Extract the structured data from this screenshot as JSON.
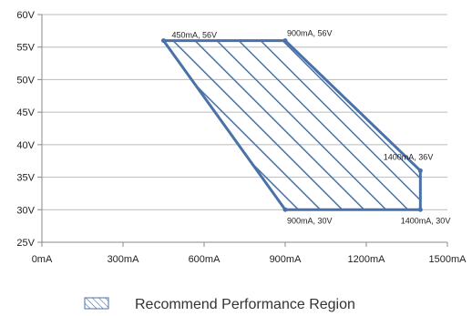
{
  "chart_data": {
    "type": "area",
    "x_ticks": [
      "0mA",
      "300mA",
      "600mA",
      "900mA",
      "1200mA",
      "1500mA"
    ],
    "x_tick_values": [
      0,
      300,
      600,
      900,
      1200,
      1500
    ],
    "y_ticks": [
      "25V",
      "30V",
      "35V",
      "40V",
      "45V",
      "50V",
      "55V",
      "60V"
    ],
    "y_tick_values": [
      25,
      30,
      35,
      40,
      45,
      50,
      55,
      60
    ],
    "xlim": [
      0,
      1500
    ],
    "ylim": [
      25,
      60
    ],
    "grid": "horizontal",
    "series": [
      {
        "name": "Recommend Performance Region",
        "points": [
          {
            "x": 450,
            "y": 56
          },
          {
            "x": 900,
            "y": 56
          },
          {
            "x": 1400,
            "y": 36
          },
          {
            "x": 1400,
            "y": 30
          },
          {
            "x": 900,
            "y": 30
          }
        ]
      }
    ],
    "annotations": [
      {
        "text": "450mA, 56V",
        "x": 450,
        "y": 56
      },
      {
        "text": "900mA, 56V",
        "x": 900,
        "y": 56
      },
      {
        "text": "1400mA, 36V",
        "x": 1400,
        "y": 36
      },
      {
        "text": "900mA, 30V",
        "x": 900,
        "y": 30
      },
      {
        "text": "1400mA, 30V",
        "x": 1400,
        "y": 30
      }
    ],
    "legend": {
      "position": "bottom",
      "label": "Recommend Performance Region"
    },
    "colors": {
      "series": "#4a72a8",
      "grid": "#bbbbbb",
      "axis": "#888888"
    }
  }
}
